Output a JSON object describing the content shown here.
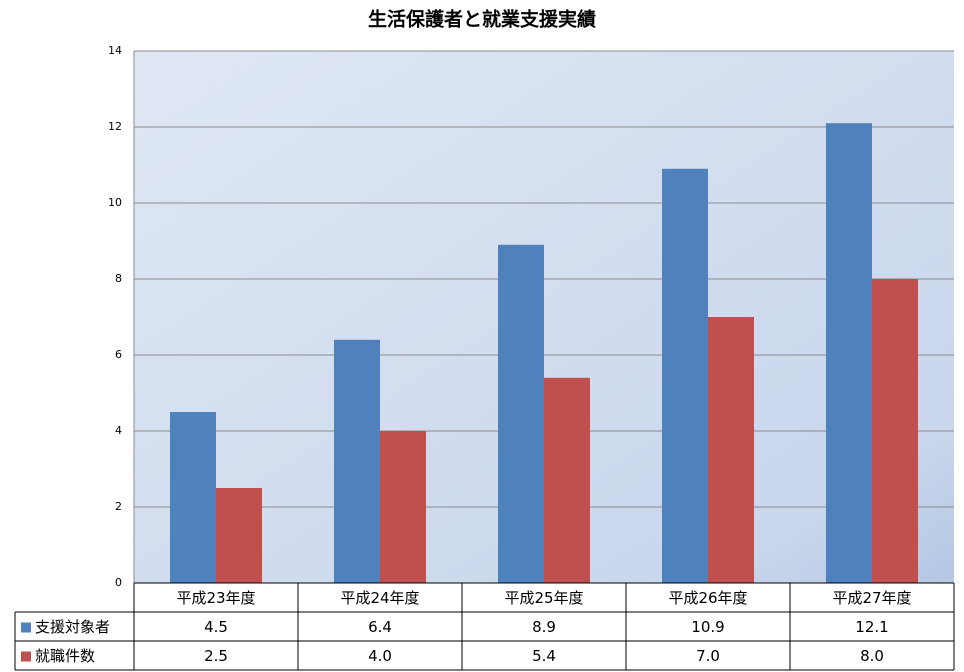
{
  "chart_data": {
    "type": "bar",
    "title": "生活保護者と就業支援実績",
    "categories": [
      "平成23年度",
      "平成24年度",
      "平成25年度",
      "平成26年度",
      "平成27年度"
    ],
    "series": [
      {
        "name": "支援対象者",
        "color": "#4f81bd",
        "values": [
          4.5,
          6.4,
          8.9,
          10.9,
          12.1
        ],
        "value_labels": [
          "4.5",
          "6.4",
          "8.9",
          "10.9",
          "12.1"
        ]
      },
      {
        "name": "就職件数",
        "color": "#c0504d",
        "values": [
          2.5,
          4.0,
          5.4,
          7.0,
          8.0
        ],
        "value_labels": [
          "2.5",
          "4.0",
          "5.4",
          "7.0",
          "8.0"
        ]
      }
    ],
    "ylim": [
      0,
      14
    ],
    "yticks": [
      0,
      2,
      4,
      6,
      8,
      10,
      12,
      14
    ],
    "grid": true,
    "legend": "table"
  }
}
